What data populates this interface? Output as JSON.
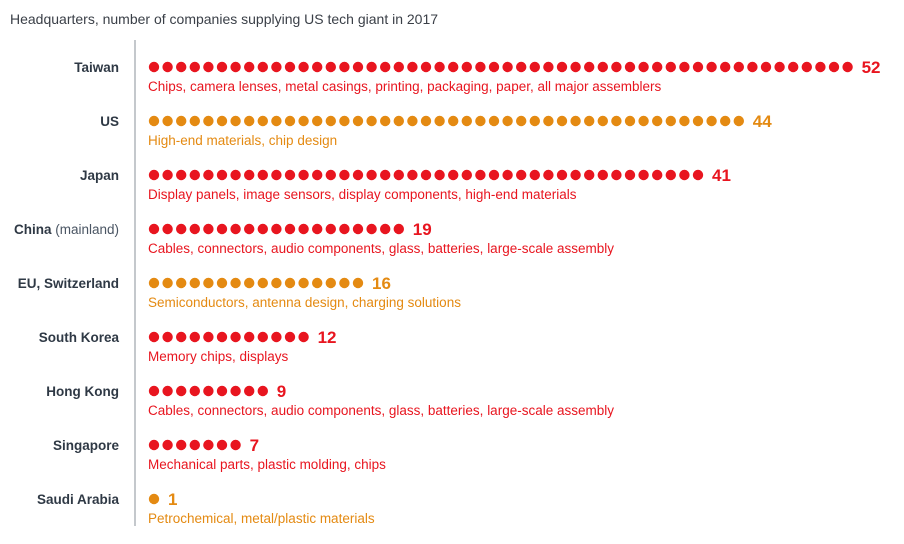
{
  "chart_data": {
    "type": "dot-bar",
    "title": "Headquarters, number of companies supplying US tech giant in 2017",
    "colors": {
      "red": "#e8151f",
      "orange": "#e48a12",
      "axis": "#8a9099"
    },
    "categories": [
      {
        "country": "Taiwan",
        "qualifier": "",
        "value": 52,
        "color": "red",
        "description": "Chips, camera lenses, metal casings, printing, packaging, paper, all major assemblers"
      },
      {
        "country": "US",
        "qualifier": "",
        "value": 44,
        "color": "orange",
        "description": "High-end materials, chip design"
      },
      {
        "country": "Japan",
        "qualifier": "",
        "value": 41,
        "color": "red",
        "description": "Display panels, image sensors, display components, high-end materials"
      },
      {
        "country": "China",
        "qualifier": "(mainland)",
        "value": 19,
        "color": "red",
        "description": "Cables, connectors, audio components, glass, batteries, large-scale assembly"
      },
      {
        "country": "EU, Switzerland",
        "qualifier": "",
        "value": 16,
        "color": "orange",
        "description": "Semiconductors, antenna design, charging solutions"
      },
      {
        "country": "South Korea",
        "qualifier": "",
        "value": 12,
        "color": "red",
        "description": "Memory chips, displays"
      },
      {
        "country": "Hong Kong",
        "qualifier": "",
        "value": 9,
        "color": "red",
        "description": "Cables, connectors, audio components, glass, batteries, large-scale assembly"
      },
      {
        "country": "Singapore",
        "qualifier": "",
        "value": 7,
        "color": "red",
        "description": "Mechanical parts, plastic molding, chips"
      },
      {
        "country": "Saudi Arabia",
        "qualifier": "",
        "value": 1,
        "color": "orange",
        "description": "Petrochemical, metal/plastic materials"
      }
    ]
  }
}
